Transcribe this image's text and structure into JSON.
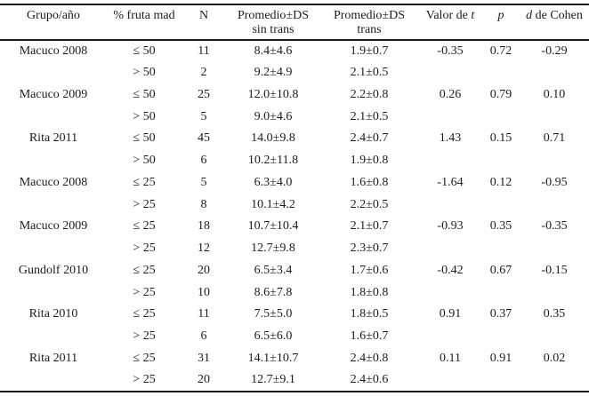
{
  "page": {
    "background": "#ffffff",
    "text_color": "#1c1c1c",
    "rule_color": "#1c1c1c"
  },
  "table": {
    "headers": {
      "grupo": "Grupo/año",
      "fruta_mad": "% fruta mad",
      "n": "N",
      "promedio_sin_line1": "Promedio±DS",
      "promedio_sin_line2": "sin trans",
      "promedio_trans_line1": "Promedio±DS",
      "promedio_trans_line2": "trans",
      "valor_t_prefix": "Valor de ",
      "valor_t_italic": "t",
      "p_italic": "p",
      "d_italic": "d",
      "d_suffix": " de Cohen"
    },
    "rows": [
      [
        "Macuco 2008",
        "≤ 50",
        "11",
        "8.4±4.6",
        "1.9±0.7",
        "-0.35",
        "0.72",
        "-0.29"
      ],
      [
        "",
        "> 50",
        "2",
        "9.2±4.9",
        "2.1±0.5",
        "",
        "",
        ""
      ],
      [
        "Macuco 2009",
        "≤ 50",
        "25",
        "12.0±10.8",
        "2.2±0.8",
        "0.26",
        "0.79",
        "0.10"
      ],
      [
        "",
        "> 50",
        "5",
        "9.0±4.6",
        "2.1±0.5",
        "",
        "",
        ""
      ],
      [
        "Rita 2011",
        "≤ 50",
        "45",
        "14.0±9.8",
        "2.4±0.7",
        "1.43",
        "0.15",
        "0.71"
      ],
      [
        "",
        "> 50",
        "6",
        "10.2±11.8",
        "1.9±0.8",
        "",
        "",
        ""
      ],
      [
        "Macuco 2008",
        "≤ 25",
        "5",
        "6.3±4.0",
        "1.6±0.8",
        "-1.64",
        "0.12",
        "-0.95"
      ],
      [
        "",
        "> 25",
        "8",
        "10.1±4.2",
        "2.2±0.5",
        "",
        "",
        ""
      ],
      [
        "Macuco 2009",
        "≤ 25",
        "18",
        "10.7±10.4",
        "2.1±0.7",
        "-0.93",
        "0.35",
        "-0.35"
      ],
      [
        "",
        "> 25",
        "12",
        "12.7±9.8",
        "2.3±0.7",
        "",
        "",
        ""
      ],
      [
        "Gundolf 2010",
        "≤ 25",
        "20",
        "6.5±3.4",
        "1.7±0.6",
        "-0.42",
        "0.67",
        "-0.15"
      ],
      [
        "",
        "> 25",
        "10",
        "8.6±7.8",
        "1.8±0.8",
        "",
        "",
        ""
      ],
      [
        "Rita 2010",
        "≤ 25",
        "11",
        "7.5±5.0",
        "1.8±0.5",
        "0.91",
        "0.37",
        "0.35"
      ],
      [
        "",
        "> 25",
        "6",
        "6.5±6.0",
        "1.6±0.7",
        "",
        "",
        ""
      ],
      [
        "Rita 2011",
        "≤ 25",
        "31",
        "14.1±10.7",
        "2.4±0.8",
        "0.11",
        "0.91",
        "0.02"
      ],
      [
        "",
        "> 25",
        "20",
        "12.7±9.1",
        "2.4±0.6",
        "",
        "",
        ""
      ]
    ]
  }
}
